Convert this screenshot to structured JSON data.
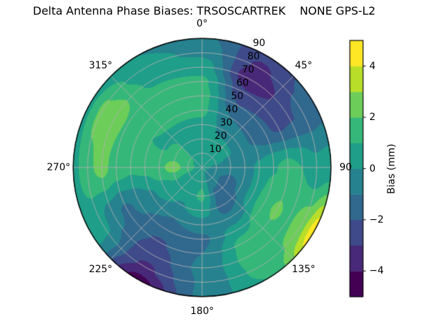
{
  "chart_data": {
    "type": "polar_contour",
    "title": "Delta Antenna Phase Biases: TRSOSCARTREK    NONE GPS-L2",
    "background": "#ffffff",
    "grid_color": "#b0b0b0",
    "angular_tick_labels": [
      "0°",
      "45°",
      "90",
      "135°",
      "180°",
      "225°",
      "270°",
      "315°"
    ],
    "angular_tick_degrees": [
      0,
      45,
      90,
      135,
      180,
      225,
      270,
      315
    ],
    "radial_tick_labels": [
      "10",
      "20",
      "30",
      "40",
      "50",
      "60",
      "70",
      "80",
      "90"
    ],
    "radial_axis_max": 90,
    "radial_label_angle_deg": 22.5,
    "levels": [
      -5,
      -4,
      -3,
      -2,
      -1,
      0,
      1,
      2,
      3,
      4,
      5
    ],
    "band_colors": [
      "#440154",
      "#482878",
      "#3e4a89",
      "#31688e",
      "#26828e",
      "#1f9e89",
      "#35b779",
      "#6dcd59",
      "#b8de29",
      "#fde725"
    ],
    "colorbar": {
      "label": "Bias (mm)",
      "range": [
        -5,
        5
      ],
      "tick_values": [
        4,
        2,
        0,
        -2,
        -4
      ],
      "tick_labels": [
        "4",
        "2",
        "0",
        "−2",
        "−4"
      ]
    },
    "grid": {
      "azimuth_deg": [
        0,
        30,
        60,
        90,
        120,
        150,
        180,
        210,
        240,
        270,
        300,
        330
      ],
      "zenith_deg": [
        0,
        10,
        20,
        30,
        40,
        50,
        60,
        70,
        80,
        90
      ],
      "bias_mm": [
        [
          0.3,
          0.5,
          0.6,
          0.8,
          1.2,
          1.4,
          1.2,
          0.6,
          -0.2,
          -0.7
        ],
        [
          0.3,
          0.4,
          0.2,
          -0.3,
          -1.0,
          -2.0,
          -2.9,
          -4.0,
          -3.2,
          -2.7
        ],
        [
          0.3,
          0.4,
          0.1,
          -0.4,
          -1.2,
          -1.8,
          -2.3,
          -2.1,
          -1.7,
          -1.5
        ],
        [
          0.3,
          -0.2,
          -0.6,
          -0.5,
          0.2,
          0.9,
          1.4,
          1.0,
          0.3,
          0.5
        ],
        [
          0.3,
          -0.8,
          -1.4,
          -0.9,
          0.5,
          1.8,
          2.1,
          1.8,
          2.6,
          4.6
        ],
        [
          0.3,
          -0.5,
          -1.2,
          -1.5,
          -0.8,
          0.6,
          1.4,
          1.5,
          1.3,
          1.0
        ],
        [
          0.3,
          0.8,
          1.2,
          0.6,
          -0.5,
          -1.2,
          -1.0,
          -0.8,
          -0.9,
          -0.8
        ],
        [
          0.3,
          0.5,
          0.5,
          -0.1,
          -1.0,
          -1.6,
          -2.1,
          -2.6,
          -3.2,
          -4.4
        ],
        [
          0.3,
          0.7,
          0.9,
          0.5,
          -0.2,
          -0.8,
          -1.2,
          -0.7,
          0.3,
          0.7
        ],
        [
          0.3,
          1.6,
          2.4,
          1.8,
          1.3,
          1.2,
          1.6,
          2.3,
          1.8,
          0.6
        ],
        [
          0.3,
          1.2,
          1.4,
          0.9,
          1.0,
          1.5,
          1.9,
          2.6,
          2.2,
          0.8
        ],
        [
          0.3,
          0.7,
          0.6,
          0.8,
          1.2,
          1.5,
          1.3,
          0.8,
          0.3,
          0.0
        ]
      ]
    }
  }
}
